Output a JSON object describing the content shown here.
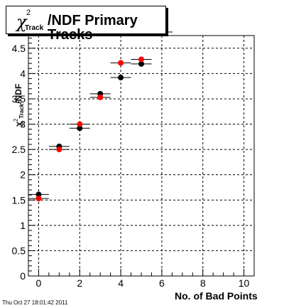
{
  "title": {
    "symbol": "χ",
    "superscript": "2",
    "subscript": "Track",
    "main": "/NDF Primary Tracks"
  },
  "footer": {
    "timestamp": "Thu Oct 27 18:01:42 2011"
  },
  "chart_data": {
    "type": "scatter",
    "title": "χ²Track/NDF Primary Tracks",
    "xlabel": "No. of Bad Points",
    "ylabel": "χ²Track/NDF",
    "xlim": [
      -0.5,
      10.5
    ],
    "ylim": [
      0,
      4.75
    ],
    "x_ticks": [
      0,
      2,
      4,
      6,
      8,
      10
    ],
    "y_ticks": [
      0,
      0.5,
      1,
      1.5,
      2,
      2.5,
      3,
      3.5,
      4,
      4.5
    ],
    "grid": true,
    "series": [
      {
        "color": "#000000",
        "points": [
          {
            "x": 0,
            "y": 1.61,
            "xerr": 0.5
          },
          {
            "x": 1,
            "y": 2.56,
            "xerr": 0.5
          },
          {
            "x": 2,
            "y": 2.92,
            "xerr": 0.5
          },
          {
            "x": 3,
            "y": 3.6,
            "xerr": 0.5
          },
          {
            "x": 4,
            "y": 3.92,
            "xerr": 0.5
          },
          {
            "x": 5,
            "y": 4.19,
            "xerr": 0.5
          }
        ]
      },
      {
        "color": "#ff0000",
        "points": [
          {
            "x": 0,
            "y": 1.53,
            "xerr": 0.5
          },
          {
            "x": 1,
            "y": 2.5,
            "xerr": 0.5
          },
          {
            "x": 2,
            "y": 3.0,
            "xerr": 0.5
          },
          {
            "x": 3,
            "y": 3.53,
            "xerr": 0.5
          },
          {
            "x": 4,
            "y": 4.21,
            "xerr": 0.5
          },
          {
            "x": 5,
            "y": 4.28,
            "xerr": 0.5
          }
        ]
      }
    ]
  }
}
